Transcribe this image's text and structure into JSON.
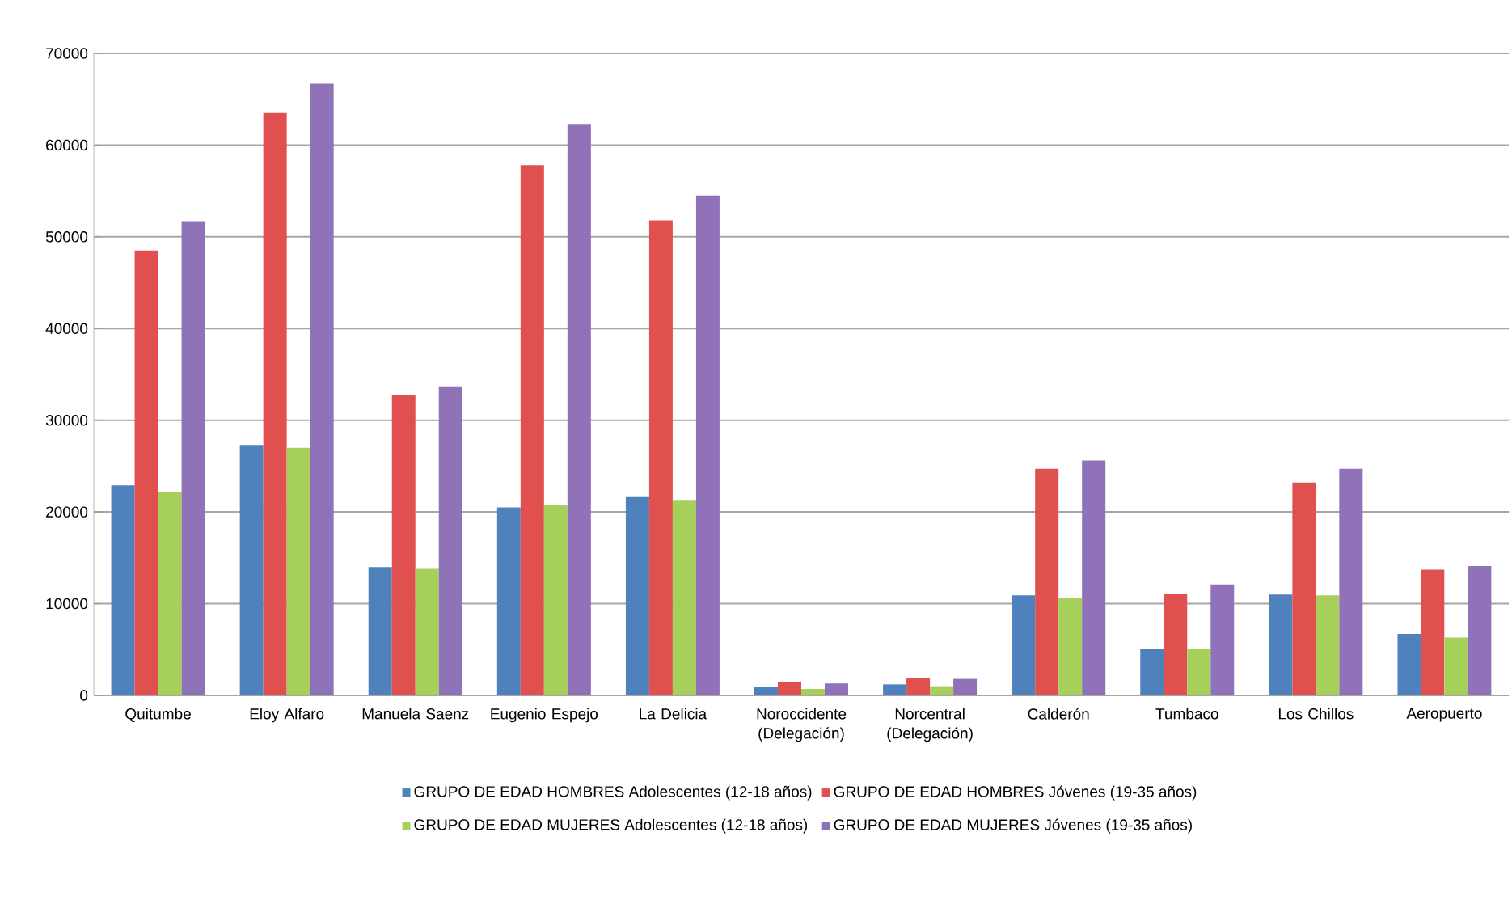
{
  "chart_data": {
    "type": "bar",
    "categories": [
      "Quitumbe",
      "Eloy Alfaro",
      "Manuela Saenz",
      "Eugenio Espejo",
      "La Delicia",
      "Noroccidente (Delegación)",
      "Norcentral (Delegación)",
      "Calderón",
      "Tumbaco",
      "Los Chillos",
      "Aeropuerto"
    ],
    "series": [
      {
        "name": "GRUPO DE EDAD HOMBRES Adolescentes (12-18 años)",
        "color": "#4f81bd",
        "values": [
          22900,
          27300,
          14000,
          20500,
          21700,
          900,
          1200,
          10900,
          5100,
          11000,
          6700
        ]
      },
      {
        "name": "GRUPO DE EDAD HOMBRES Jóvenes (19-35 años)",
        "color": "#e0504e",
        "values": [
          48500,
          63500,
          32700,
          57800,
          51800,
          1500,
          1900,
          24700,
          11100,
          23200,
          13700
        ]
      },
      {
        "name": "GRUPO DE EDAD MUJERES Adolescentes (12-18 años)",
        "color": "#a6d05a",
        "values": [
          22200,
          27000,
          13800,
          20800,
          21300,
          700,
          1000,
          10600,
          5100,
          10900,
          6300
        ]
      },
      {
        "name": "GRUPO DE EDAD MUJERES Jóvenes (19-35 años)",
        "color": "#8f72b8",
        "values": [
          51700,
          66700,
          33700,
          62300,
          54500,
          1300,
          1800,
          25600,
          12100,
          24700,
          14100
        ]
      }
    ],
    "ylim": [
      0,
      70000
    ],
    "yticks": [
      0,
      10000,
      20000,
      30000,
      40000,
      50000,
      60000,
      70000
    ],
    "grid": "y",
    "legend": "bottom"
  }
}
